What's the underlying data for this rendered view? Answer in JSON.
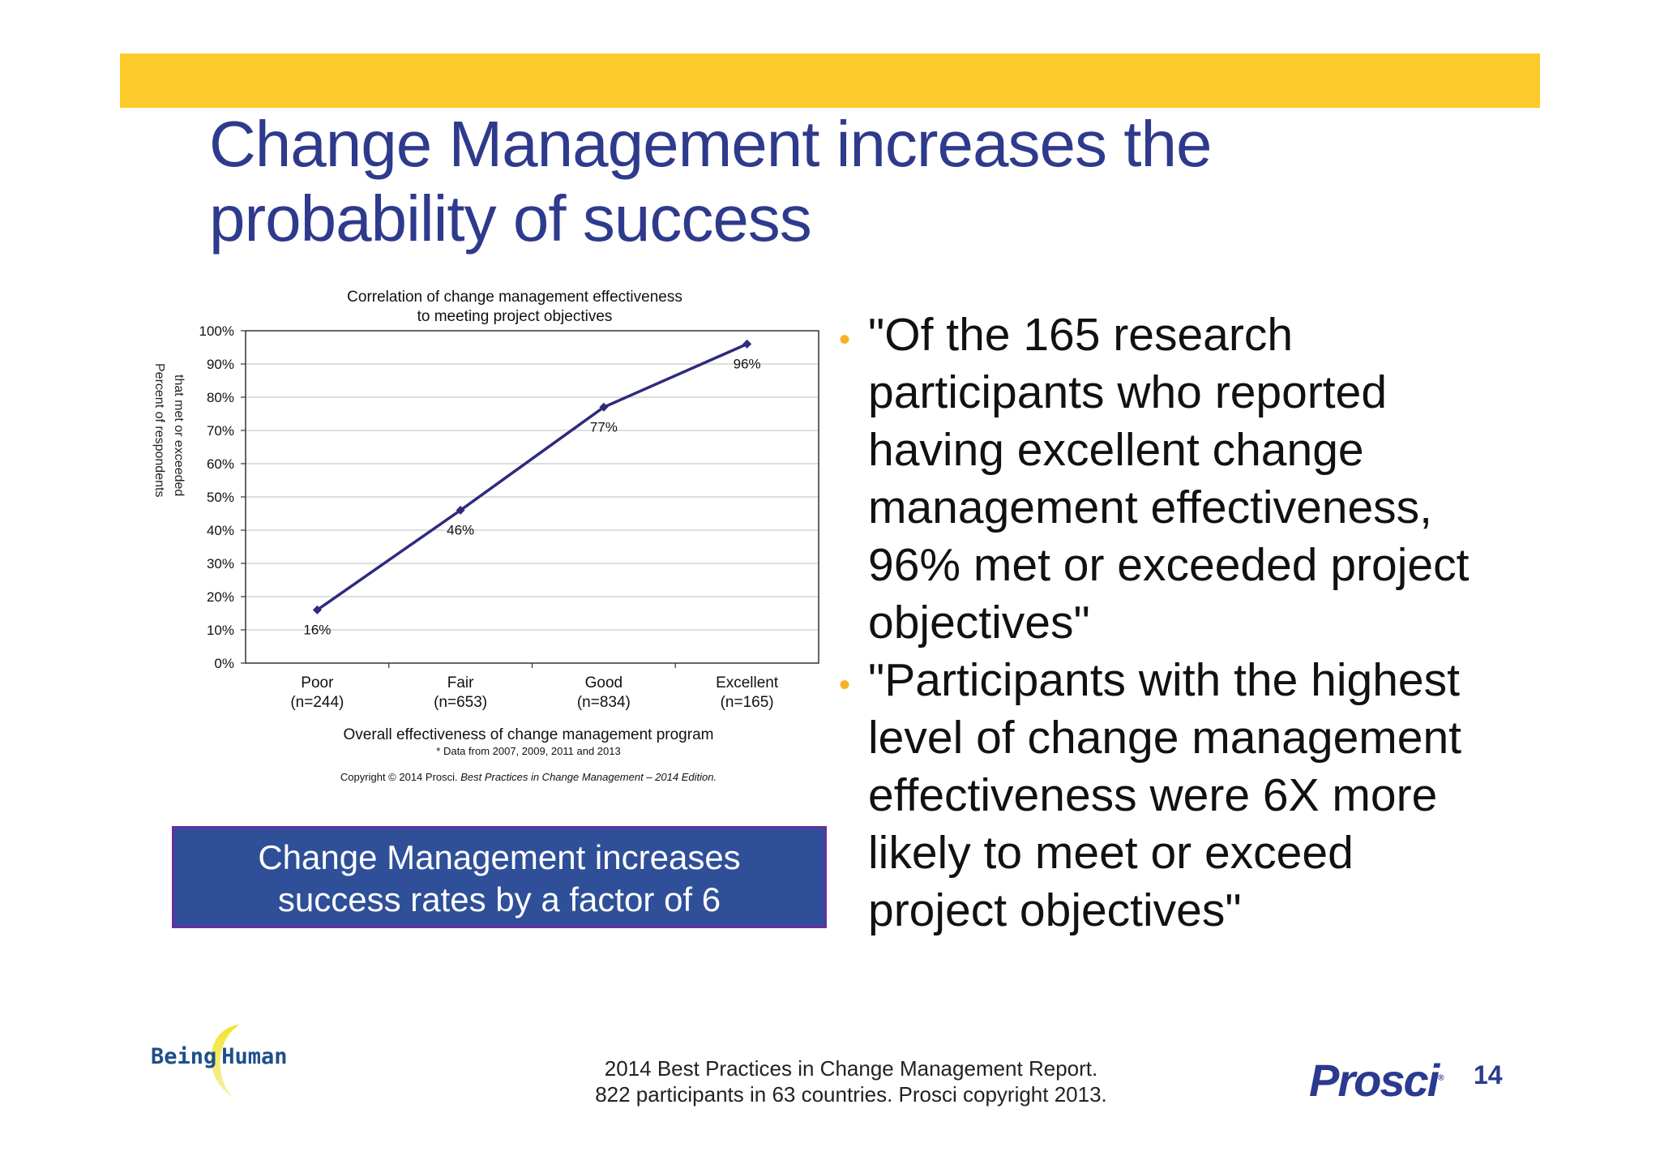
{
  "slide": {
    "title": "Change Management increases the probability of success",
    "page_number": "14"
  },
  "colors": {
    "top_bar": "#fcca2b",
    "title": "#2e3a8c",
    "callout_bg": "#2f4f98",
    "callout_border": "#6a2ca0",
    "line": "#2e2a7e",
    "bullet": "#f5b323",
    "prosci": "#2b3990"
  },
  "chart_data": {
    "type": "line",
    "title_lines": [
      "Correlation of change management effectiveness",
      "to meeting project objectives"
    ],
    "ylabel_columns": [
      "Percent of respondents",
      "that met or exceeded"
    ],
    "xlabel": "Overall effectiveness of change management program",
    "note": "* Data from 2007, 2009, 2011 and 2013",
    "copyright_prefix": "Copyright © 2014 Prosci. ",
    "copyright_title": "Best Practices in Change Management – 2014 Edition.",
    "categories": [
      {
        "name": "Poor",
        "n": "(n=244)"
      },
      {
        "name": "Fair",
        "n": "(n=653)"
      },
      {
        "name": "Good",
        "n": "(n=834)"
      },
      {
        "name": "Excellent",
        "n": "(n=165)"
      }
    ],
    "values": [
      16,
      46,
      77,
      96
    ],
    "data_labels": [
      "16%",
      "46%",
      "77%",
      "96%"
    ],
    "ylim": [
      0,
      100
    ],
    "yticks": [
      0,
      10,
      20,
      30,
      40,
      50,
      60,
      70,
      80,
      90,
      100
    ],
    "ytick_labels": [
      "0%",
      "10%",
      "20%",
      "30%",
      "40%",
      "50%",
      "60%",
      "70%",
      "80%",
      "90%",
      "100%"
    ],
    "grid": true,
    "marker": "diamond"
  },
  "callout": {
    "line1": "Change Management increases",
    "line2": "success rates by a factor of 6"
  },
  "bullets": [
    {
      "text": "\"Of the 165 research participants who reported having excellent change management effectiveness, 96% met or exceeded project objectives\""
    },
    {
      "text": "\"Participants with the highest level of change management effectiveness were 6X more likely to meet or exceed project objectives\""
    }
  ],
  "bullet_symbol": "•",
  "footer": {
    "source_line1": "2014 Best Practices in Change Management Report.",
    "source_line2": "822 participants in 63 countries.  Prosci copyright 2013."
  },
  "logos": {
    "being_human": "Being Human",
    "being_left": "Being",
    "being_right": "Human",
    "prosci": "Prosci",
    "prosci_mark": "®"
  }
}
